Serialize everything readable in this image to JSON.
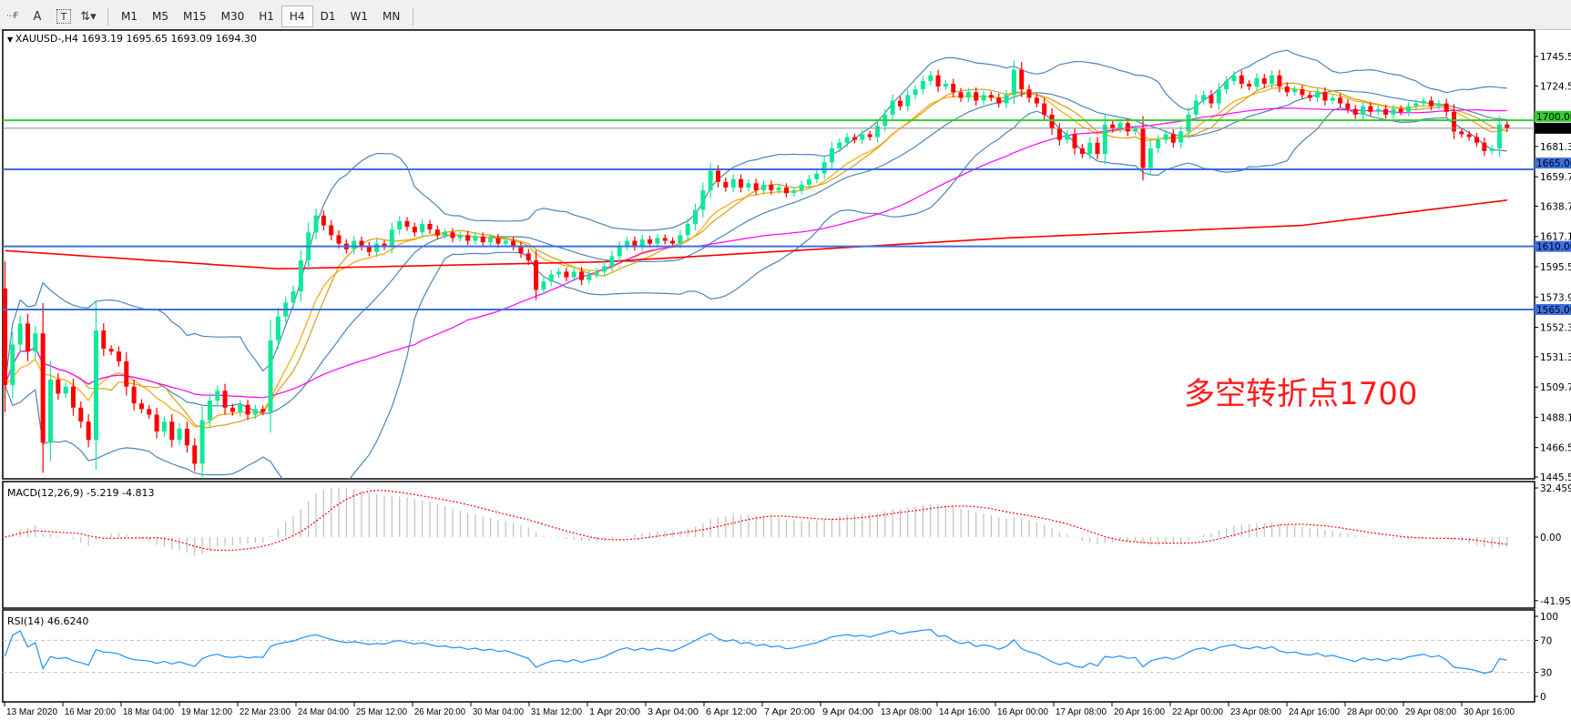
{
  "toolbar": {
    "icons": [
      "period-separator-icon",
      "text-icon",
      "text-label-icon",
      "arrows-icon"
    ],
    "timeframes": [
      "M1",
      "M5",
      "M15",
      "M30",
      "H1",
      "H4",
      "D1",
      "W1",
      "MN"
    ],
    "active_timeframe": "H4"
  },
  "chart": {
    "title": "XAUUSD-,H4  1693.19 1695.65 1693.09 1694.30",
    "annotation": "多空转折点1700",
    "colors": {
      "bull": "#11e89a",
      "bear": "#ff0000",
      "bollinger": "#4a86b8",
      "ma_fast": "#ffa500",
      "ma_slow": "#d4a017",
      "ma_mid": "#ff00ff",
      "ma200": "#ff0000",
      "level_green": "#33cc33",
      "level_blue": "#3d6fe0",
      "price_line": "#8c8c8c"
    }
  },
  "chart_data": {
    "type": "candlestick",
    "symbol": "XAUUSD-",
    "timeframe": "H4",
    "price_axis": {
      "range": [
        1445.5,
        1745.5
      ],
      "ticks": [
        "1745.50",
        "1724.50",
        "1681.30",
        "1659.70",
        "1638.70",
        "1617.10",
        "1595.50",
        "1573.90",
        "1552.30",
        "1531.30",
        "1509.70",
        "1488.10",
        "1466.50",
        "1445.50"
      ],
      "tick_values": [
        1745.5,
        1724.5,
        1681.3,
        1659.7,
        1638.7,
        1617.1,
        1595.5,
        1573.9,
        1552.3,
        1531.3,
        1509.7,
        1488.1,
        1466.5,
        1445.5
      ]
    },
    "time_labels": [
      "13 Mar 2020",
      "16 Mar 20:00",
      "18 Mar 04:00",
      "19 Mar 12:00",
      "22 Mar 23:00",
      "24 Mar 04:00",
      "25 Mar 12:00",
      "26 Mar 20:00",
      "30 Mar 04:00",
      "31 Mar 12:00",
      "1 Apr 20:00",
      "3 Apr 04:00",
      "6 Apr 12:00",
      "7 Apr 20:00",
      "9 Apr 04:00",
      "13 Apr 08:00",
      "14 Apr 16:00",
      "16 Apr 00:00",
      "17 Apr 08:00",
      "20 Apr 16:00",
      "22 Apr 00:00",
      "23 Apr 08:00",
      "24 Apr 16:00",
      "28 Apr 00:00",
      "29 Apr 08:00",
      "30 Apr 16:00"
    ],
    "first_open": 1580,
    "closes": [
      1511,
      1540,
      1555,
      1535,
      1548,
      1470,
      1515,
      1505,
      1510,
      1495,
      1485,
      1472,
      1550,
      1537,
      1535,
      1528,
      1510,
      1498,
      1494,
      1490,
      1478,
      1485,
      1472,
      1480,
      1468,
      1455,
      1486,
      1500,
      1507,
      1495,
      1492,
      1497,
      1490,
      1494,
      1492,
      1543,
      1560,
      1570,
      1578,
      1600,
      1620,
      1632,
      1625,
      1618,
      1612,
      1608,
      1614,
      1610,
      1606,
      1612,
      1610,
      1622,
      1628,
      1624,
      1620,
      1626,
      1622,
      1618,
      1620,
      1616,
      1618,
      1614,
      1617,
      1613,
      1616,
      1612,
      1614,
      1610,
      1605,
      1600,
      1579,
      1585,
      1590,
      1592,
      1588,
      1592,
      1586,
      1590,
      1592,
      1596,
      1603,
      1610,
      1614,
      1610,
      1615,
      1612,
      1616,
      1614,
      1612,
      1618,
      1626,
      1636,
      1650,
      1664,
      1656,
      1652,
      1658,
      1652,
      1655,
      1650,
      1654,
      1650,
      1652,
      1648,
      1650,
      1654,
      1658,
      1662,
      1670,
      1680,
      1684,
      1688,
      1686,
      1690,
      1688,
      1696,
      1704,
      1714,
      1710,
      1718,
      1722,
      1728,
      1732,
      1724,
      1726,
      1720,
      1716,
      1720,
      1714,
      1718,
      1716,
      1712,
      1718,
      1736,
      1722,
      1716,
      1712,
      1704,
      1694,
      1686,
      1690,
      1680,
      1676,
      1684,
      1676,
      1697,
      1694,
      1698,
      1692,
      1694,
      1666,
      1680,
      1686,
      1690,
      1684,
      1692,
      1704,
      1714,
      1718,
      1712,
      1722,
      1728,
      1732,
      1726,
      1724,
      1730,
      1726,
      1732,
      1724,
      1720,
      1722,
      1718,
      1716,
      1720,
      1714,
      1716,
      1712,
      1708,
      1704,
      1710,
      1706,
      1708,
      1704,
      1708,
      1706,
      1710,
      1712,
      1714,
      1710,
      1712,
      1706,
      1692,
      1690,
      1688,
      1684,
      1678,
      1680,
      1697,
      1694.3
    ],
    "last_ohlc": {
      "open": 1693.19,
      "high": 1695.65,
      "low": 1693.09,
      "close": 1694.3
    },
    "ma200_points": [
      [
        0,
        1607
      ],
      [
        36,
        1594
      ],
      [
        79,
        1599
      ],
      [
        132,
        1616
      ],
      [
        171,
        1625
      ],
      [
        198,
        1643
      ]
    ],
    "levels": [
      {
        "value": 1700.0,
        "label": "1700.00",
        "color": "green"
      },
      {
        "value": 1665.0,
        "label": "1665.00",
        "color": "blue"
      },
      {
        "value": 1610.0,
        "label": "1610.00",
        "color": "blue"
      },
      {
        "value": 1565.0,
        "label": "1565.00",
        "color": "blue"
      }
    ],
    "current_price": {
      "value": 1694.3,
      "label": "1694.30"
    },
    "macd": {
      "title": "MACD(12,26,9) -5.219 -4.813",
      "params": [
        12,
        26,
        9
      ],
      "range": [
        -41.95,
        32.459
      ],
      "ticks": [
        "32.459",
        "0.00",
        "-41.95"
      ]
    },
    "rsi": {
      "title": "RSI(14) 46.6240",
      "period": 14,
      "range": [
        0,
        100
      ],
      "ticks": [
        "100",
        "70",
        "30",
        "0"
      ],
      "levels": [
        70,
        30
      ]
    }
  }
}
